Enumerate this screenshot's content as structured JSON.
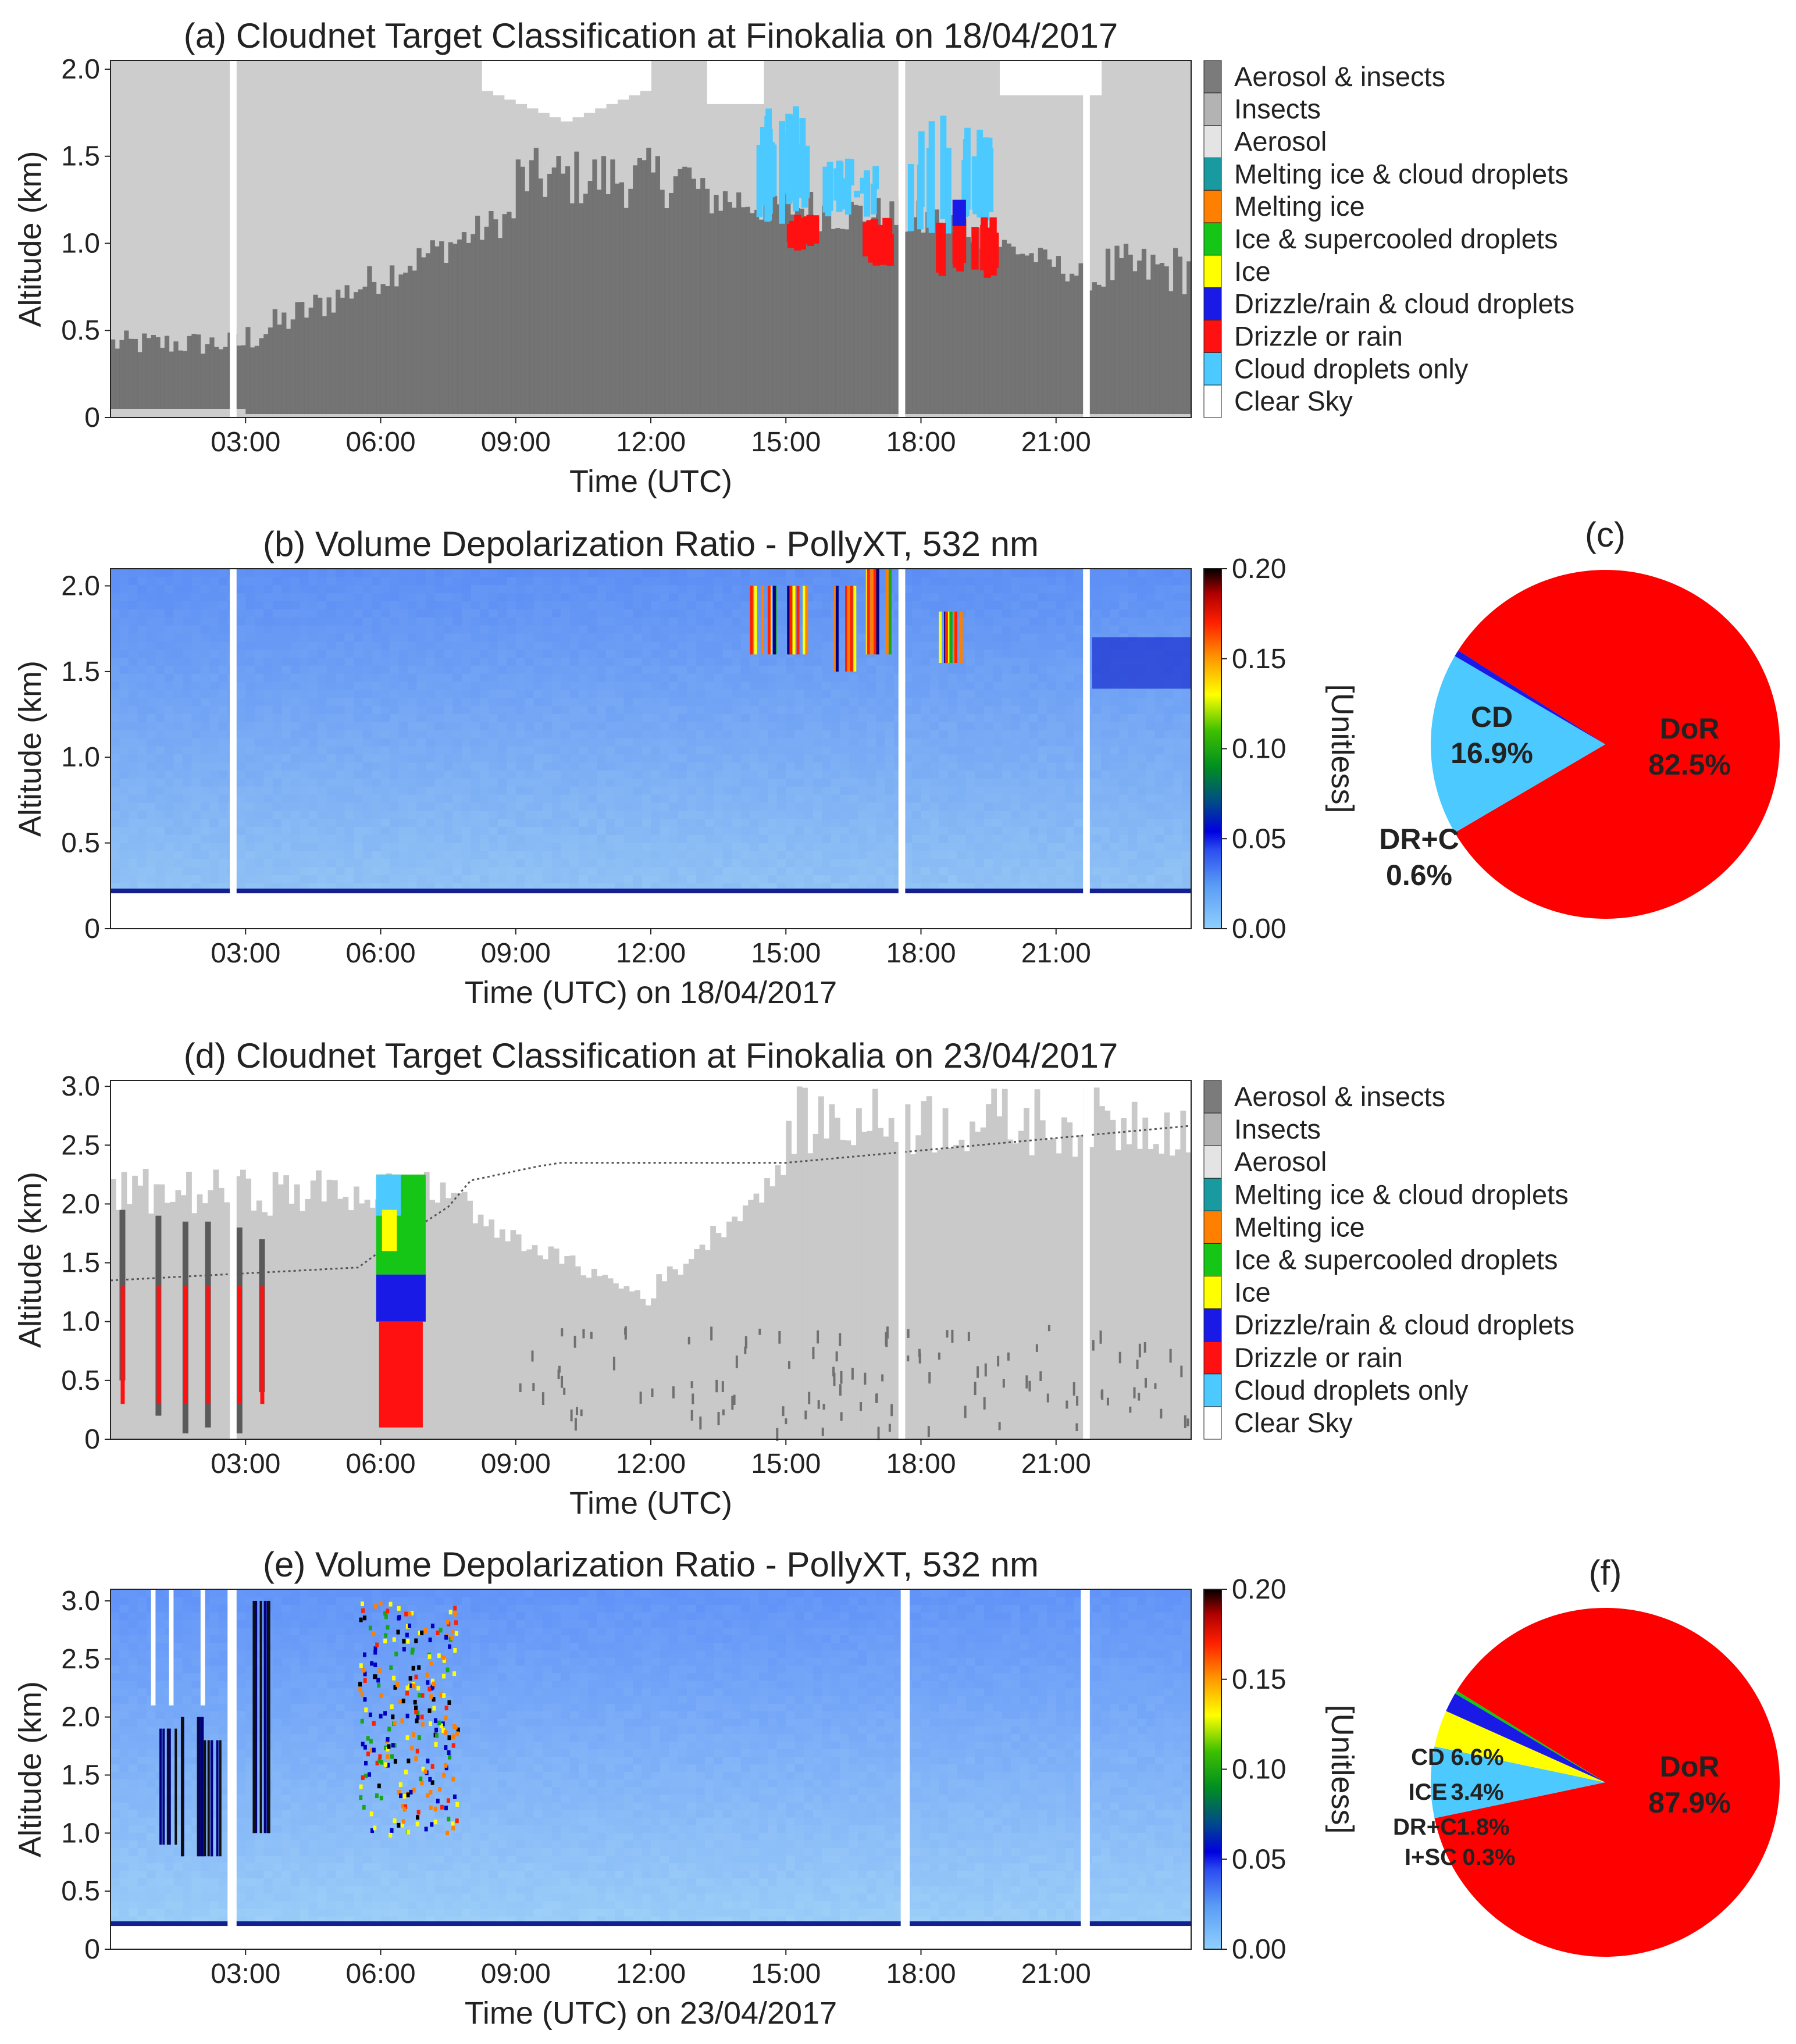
{
  "chart_data": [
    {
      "panel": "a",
      "type": "heatmap",
      "title": "(a) Cloudnet Target Classification at Finokalia on 18/04/2017",
      "xlabel": "Time (UTC)",
      "ylabel": "Altitude (km)",
      "xticks": [
        "03:00",
        "06:00",
        "09:00",
        "12:00",
        "15:00",
        "18:00",
        "21:00"
      ],
      "yticks": [
        "0",
        "0.5",
        "1.0",
        "1.5",
        "2.0"
      ],
      "ylim": [
        0,
        2.05
      ],
      "xlim_hours": [
        0,
        24
      ],
      "legend": [
        "Aerosol & insects",
        "Insects",
        "Aerosol",
        "Melting ice & cloud droplets",
        "Melting ice",
        "Ice & supercooled droplets",
        "Ice",
        "Drizzle/rain & cloud droplets",
        "Drizzle or rain",
        "Cloud droplets only",
        "Clear Sky"
      ],
      "legend_colors": [
        "#7b7b7b",
        "#b3b3b3",
        "#e4e4e4",
        "#189aa0",
        "#ff8000",
        "#16c616",
        "#ffff00",
        "#1a1ae6",
        "#ff1111",
        "#4cc9ff",
        "#ffffff"
      ]
    },
    {
      "panel": "b",
      "type": "heatmap",
      "title": "(b) Volume Depolarization Ratio - PollyXT, 532 nm",
      "xlabel": "Time (UTC) on 18/04/2017",
      "ylabel": "Altitude (km)",
      "xticks": [
        "03:00",
        "06:00",
        "09:00",
        "12:00",
        "15:00",
        "18:00",
        "21:00"
      ],
      "yticks": [
        "0",
        "0.5",
        "1.0",
        "1.5",
        "2.0"
      ],
      "ylim": [
        0,
        2.1
      ],
      "colorbar_label": "[Unitless]",
      "colorbar_ticks": [
        "0.00",
        "0.05",
        "0.10",
        "0.15",
        "0.20"
      ],
      "colorbar_range": [
        0,
        0.2
      ]
    },
    {
      "panel": "c",
      "type": "pie",
      "title": "(c)",
      "labels": [
        "DoR",
        "CD",
        "DR+C"
      ],
      "values": [
        82.5,
        16.9,
        0.6
      ],
      "value_labels": [
        "82.5%",
        "16.9%",
        "0.6%"
      ],
      "colors": [
        "#ff0000",
        "#4cc9ff",
        "#1a1ae6"
      ]
    },
    {
      "panel": "d",
      "type": "heatmap",
      "title": "(d) Cloudnet Target Classification at Finokalia on 23/04/2017",
      "xlabel": "Time (UTC)",
      "ylabel": "Altitude (km)",
      "xticks": [
        "03:00",
        "06:00",
        "09:00",
        "12:00",
        "15:00",
        "18:00",
        "21:00"
      ],
      "yticks": [
        "0",
        "0.5",
        "1.0",
        "1.5",
        "2.0",
        "2.5",
        "3.0"
      ],
      "ylim": [
        0,
        3.05
      ],
      "legend": [
        "Aerosol & insects",
        "Insects",
        "Aerosol",
        "Melting ice & cloud droplets",
        "Melting ice",
        "Ice & supercooled droplets",
        "Ice",
        "Drizzle/rain & cloud droplets",
        "Drizzle or rain",
        "Cloud droplets only",
        "Clear Sky"
      ],
      "legend_colors": [
        "#7b7b7b",
        "#b3b3b3",
        "#e4e4e4",
        "#189aa0",
        "#ff8000",
        "#16c616",
        "#ffff00",
        "#1a1ae6",
        "#ff1111",
        "#4cc9ff",
        "#ffffff"
      ]
    },
    {
      "panel": "e",
      "type": "heatmap",
      "title": "(e) Volume Depolarization Ratio - PollyXT, 532 nm",
      "xlabel": "Time (UTC) on 23/04/2017",
      "ylabel": "Altitude (km)",
      "xticks": [
        "03:00",
        "06:00",
        "09:00",
        "12:00",
        "15:00",
        "18:00",
        "21:00"
      ],
      "yticks": [
        "0",
        "0.5",
        "1.0",
        "1.5",
        "2.0",
        "2.5",
        "3.0"
      ],
      "ylim": [
        0,
        3.1
      ],
      "colorbar_label": "[Unitless]",
      "colorbar_ticks": [
        "0.00",
        "0.05",
        "0.10",
        "0.15",
        "0.20"
      ],
      "colorbar_range": [
        0,
        0.2
      ]
    },
    {
      "panel": "f",
      "type": "pie",
      "title": "(f)",
      "labels": [
        "DoR",
        "CD",
        "ICE",
        "DR+C",
        "I+SC"
      ],
      "values": [
        87.9,
        6.6,
        3.4,
        1.8,
        0.3
      ],
      "value_labels": [
        "87.9%",
        "6.6%",
        "3.4%",
        "1.8%",
        "0.3%"
      ],
      "colors": [
        "#ff0000",
        "#4cc9ff",
        "#ffff00",
        "#1a1ae6",
        "#16c616"
      ]
    }
  ]
}
